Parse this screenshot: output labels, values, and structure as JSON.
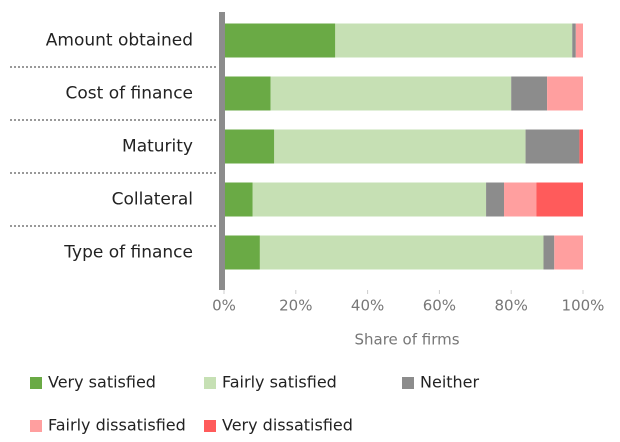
{
  "chart_data": {
    "type": "stacked_bar_horizontal",
    "categories": [
      "Amount obtained",
      "Cost of finance",
      "Maturity",
      "Collateral",
      "Type of finance"
    ],
    "series": [
      {
        "name": "Very satisfied",
        "color": "#6aaa45",
        "values": [
          31,
          13,
          14,
          8,
          10
        ]
      },
      {
        "name": "Fairly satisfied",
        "color": "#c6e0b4",
        "values": [
          66,
          67,
          70,
          65,
          79
        ]
      },
      {
        "name": "Neither",
        "color": "#8c8c8c",
        "values": [
          1,
          10,
          15,
          5,
          3
        ]
      },
      {
        "name": "Fairly dissatisfied",
        "color": "#ff9f9f",
        "values": [
          2,
          10,
          0,
          9,
          8
        ]
      },
      {
        "name": "Very dissatisfied",
        "color": "#ff5b5b",
        "values": [
          0,
          0,
          1,
          13,
          0
        ]
      }
    ],
    "x_label": "Share of firms",
    "xlim": [
      0,
      100
    ],
    "xticks": [
      {
        "value": 0,
        "label": "0%"
      },
      {
        "value": 20,
        "label": "20%"
      },
      {
        "value": 40,
        "label": "40%"
      },
      {
        "value": 60,
        "label": "60%"
      },
      {
        "value": 80,
        "label": "80%"
      },
      {
        "value": 100,
        "label": "100%"
      }
    ],
    "legend": "bottom"
  }
}
